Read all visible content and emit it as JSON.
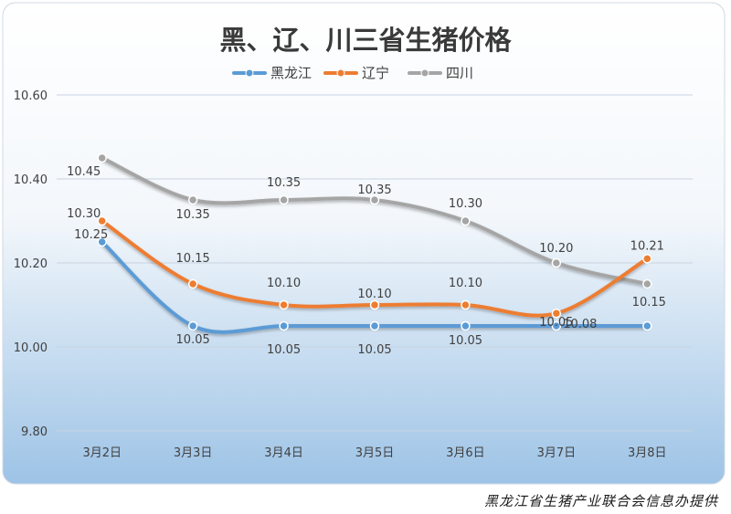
{
  "footer": {
    "source": "黑龙江省生猪产业联合会信息办提供"
  },
  "colors": {
    "heilongjiang": "#5B9BD5",
    "liaoning": "#ED7D31",
    "sichuan": "#A5A5A5",
    "title": "#3a3a3a",
    "grid": "#c8d4e0"
  },
  "chart_data": {
    "type": "line",
    "title": "黑、辽、川三省生猪价格",
    "xlabel": "",
    "ylabel": "",
    "categories": [
      "3月2日",
      "3月3日",
      "3月4日",
      "3月5日",
      "3月6日",
      "3月7日",
      "3月8日"
    ],
    "ylim": [
      9.8,
      10.6
    ],
    "yticks": [
      "9.80",
      "10.00",
      "10.20",
      "10.40",
      "10.60"
    ],
    "grid": true,
    "legend": "top-center",
    "smooth": true,
    "series": [
      {
        "name": "黑龙江",
        "color_key": "heilongjiang",
        "values": [
          10.25,
          10.05,
          10.05,
          10.05,
          10.05,
          10.05,
          10.05
        ],
        "labels": [
          "10.25",
          "10.05",
          "10.05",
          "10.05",
          "10.05",
          "10.05",
          ""
        ]
      },
      {
        "name": "辽宁",
        "color_key": "liaoning",
        "values": [
          10.3,
          10.15,
          10.1,
          10.1,
          10.1,
          10.08,
          10.21
        ],
        "labels": [
          "10.30",
          "10.15",
          "10.10",
          "10.10",
          "10.10",
          "10.08",
          "10.21"
        ]
      },
      {
        "name": "四川",
        "color_key": "sichuan",
        "values": [
          10.45,
          10.35,
          10.35,
          10.35,
          10.3,
          10.2,
          10.15
        ],
        "labels": [
          "10.45",
          "10.35",
          "10.35",
          "10.35",
          "10.30",
          "10.20",
          "10.15"
        ]
      }
    ]
  }
}
